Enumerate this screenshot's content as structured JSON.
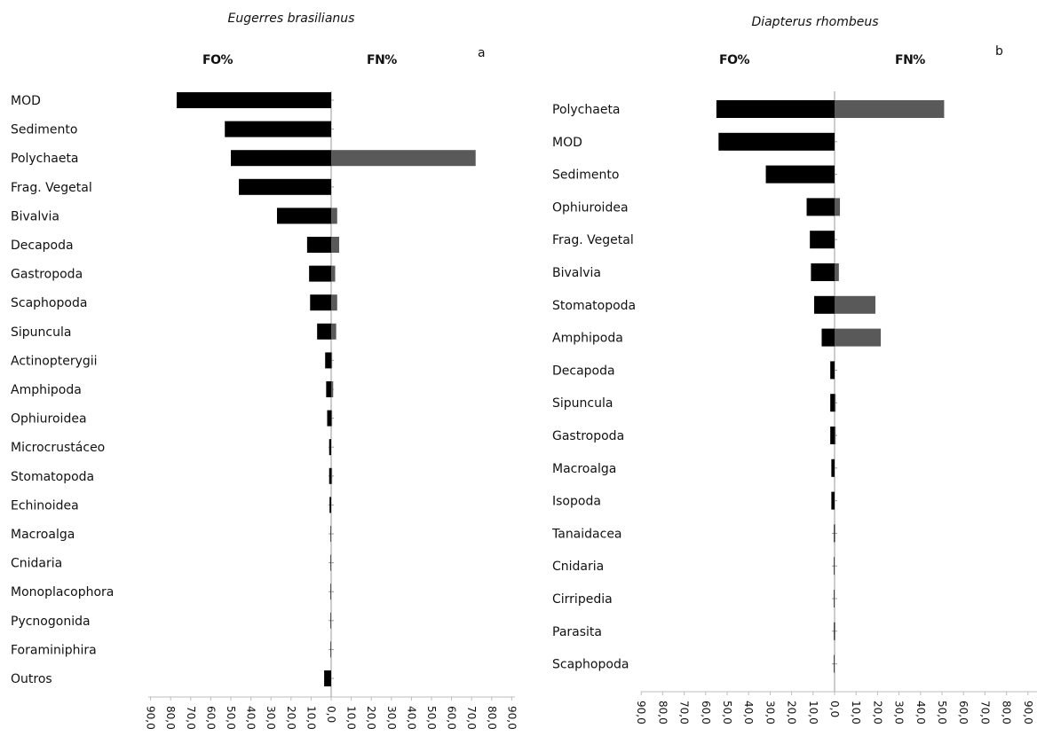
{
  "chart_data": [
    {
      "type": "bar",
      "title": "Eugerres brasilianus",
      "panel_letter": "a",
      "left_header": "FO%",
      "right_header": "FN%",
      "xlim": [
        -90,
        90
      ],
      "tick_labels": [
        "90,0",
        "80,0",
        "70,0",
        "60,0",
        "50,0",
        "40,0",
        "30,0",
        "20,0",
        "10,0",
        "0,0",
        "10,0",
        "20,0",
        "30,0",
        "40,0",
        "50,0",
        "60,0",
        "70,0",
        "80,0",
        "90,0"
      ],
      "categories": [
        "MOD",
        "Sedimento",
        "Polychaeta",
        "Frag. Vegetal",
        "Bivalvia",
        "Decapoda",
        "Gastropoda",
        "Scaphopoda",
        "Sipuncula",
        "Actinopterygii",
        "Amphipoda",
        "Ophiuroidea",
        "Microcrustáceo",
        "Stomatopoda",
        "Echinoidea",
        "Macroalga",
        "Cnidaria",
        "Monoplacophora",
        "Pycnogonida",
        "Foraminiphira",
        "Outros"
      ],
      "series": [
        {
          "name": "FO%",
          "color": "#000000",
          "values": [
            77,
            53,
            50,
            46,
            27,
            12,
            11,
            10.5,
            7,
            3,
            2.5,
            2,
            1,
            1,
            0.8,
            0.3,
            0.3,
            0.3,
            0.3,
            0.3,
            3.5
          ]
        },
        {
          "name": "FN%",
          "color": "#595959",
          "values": [
            0,
            0,
            72,
            0,
            3,
            4,
            2,
            3,
            2.5,
            0.5,
            1,
            0.5,
            0,
            0.5,
            0,
            0,
            0,
            0,
            0,
            0,
            0
          ]
        }
      ]
    },
    {
      "type": "bar",
      "title": "Diapterus rhombeus",
      "panel_letter": "b",
      "left_header": "FO%",
      "right_header": "FN%",
      "xlim": [
        -90,
        90
      ],
      "tick_labels": [
        "90,0",
        "80,0",
        "70,0",
        "60,0",
        "50,0",
        "40,0",
        "30,0",
        "20,0",
        "10,0",
        "0,0",
        "10,0",
        "20,0",
        "30,0",
        "40,0",
        "50,0",
        "60,0",
        "70,0",
        "80,0",
        "90,0"
      ],
      "categories": [
        "Polychaeta",
        "MOD",
        "Sedimento",
        "Ophiuroidea",
        "Frag. Vegetal",
        "Bivalvia",
        "Stomatopoda",
        "Amphipoda",
        "Decapoda",
        "Sipuncula",
        "Gastropoda",
        "Macroalga",
        "Isopoda",
        "Tanaidacea",
        "Cnidaria",
        "Cirripedia",
        "Parasita",
        "Scaphopoda"
      ],
      "series": [
        {
          "name": "FO%",
          "color": "#000000",
          "values": [
            55,
            54,
            32,
            13,
            11.5,
            11,
            9.5,
            6,
            2,
            2,
            2,
            1.5,
            1.5,
            0.3,
            0.3,
            0.3,
            0.3,
            0.3
          ]
        },
        {
          "name": "FN%",
          "color": "#595959",
          "values": [
            51,
            0,
            0,
            2.5,
            0,
            2,
            19,
            21.5,
            0,
            0.5,
            0.5,
            0,
            0,
            0.3,
            0,
            0,
            0.3,
            0
          ]
        }
      ]
    }
  ]
}
